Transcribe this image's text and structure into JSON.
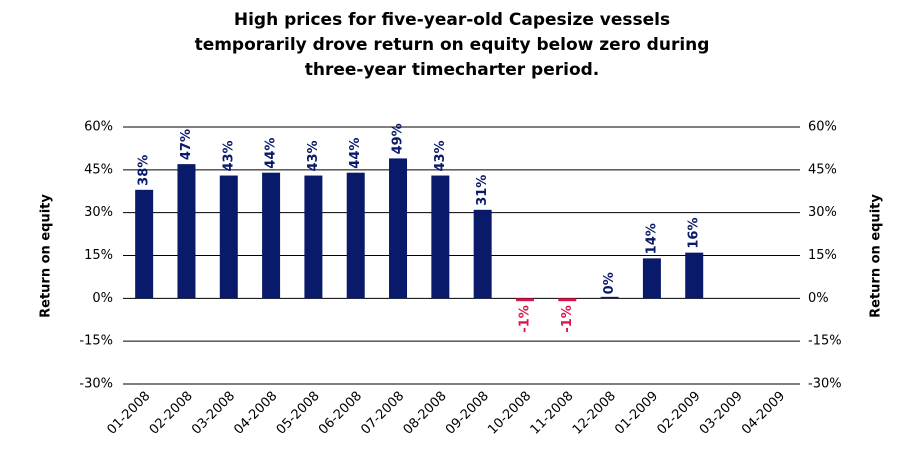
{
  "chart_data": {
    "type": "bar",
    "title": [
      "High prices for five-year-old Capesize vessels",
      "temporarily drove return on equity below zero during",
      "three-year timecharter period."
    ],
    "y_label": "Return on equity",
    "y2_label": "Return on equity",
    "categories": [
      "01-2008",
      "02-2008",
      "03-2008",
      "04-2008",
      "05-2008",
      "06-2008",
      "07-2008",
      "08-2008",
      "09-2008",
      "10-2008",
      "11-2008",
      "12-2008",
      "01-2009",
      "02-2009",
      "03-2009",
      "04-2009"
    ],
    "values": [
      38,
      47,
      43,
      44,
      43,
      44,
      49,
      43,
      31,
      -1,
      -1,
      0,
      14,
      16,
      null,
      null
    ],
    "value_labels": [
      "38%",
      "47%",
      "43%",
      "44%",
      "43%",
      "44%",
      "49%",
      "43%",
      "31%",
      "-1%",
      "-1%",
      "0%",
      "14%",
      "16%",
      null,
      null
    ],
    "color": "#0a1a6a",
    "negative_color": "#e0144c",
    "ylim": [
      -30,
      60
    ],
    "yticks": [
      {
        "value": -30,
        "label": "-30%"
      },
      {
        "value": -15,
        "label": "-15%"
      },
      {
        "value": 0,
        "label": "0%"
      },
      {
        "value": 15,
        "label": "15%"
      },
      {
        "value": 30,
        "label": "30%"
      },
      {
        "value": 45,
        "label": "45%"
      },
      {
        "value": 60,
        "label": "60%"
      }
    ],
    "y2lim": [
      -30,
      60
    ],
    "y2ticks": [
      {
        "value": -30,
        "label": "-30%"
      },
      {
        "value": -15,
        "label": "-15%"
      },
      {
        "value": 0,
        "label": "0%"
      },
      {
        "value": 15,
        "label": "15%"
      },
      {
        "value": 30,
        "label": "30%"
      },
      {
        "value": 45,
        "label": "45%"
      },
      {
        "value": 60,
        "label": "60%"
      }
    ],
    "grid": true
  }
}
